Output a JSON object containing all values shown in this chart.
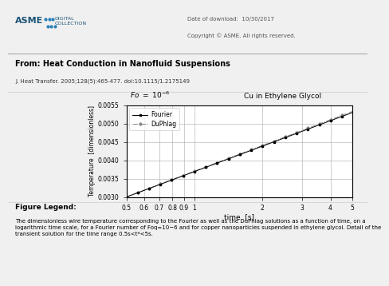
{
  "title_fo": "$Fo\\ =\\ 10^{-6}$",
  "title_right": "Cu in Ethylene Glycol",
  "xlabel": "time  [s]",
  "ylabel": "Temperature  [dimensionless]",
  "xlim": [
    0.5,
    5.0
  ],
  "ylim": [
    0.003,
    0.0055
  ],
  "yticks": [
    0.003,
    0.0035,
    0.004,
    0.0045,
    0.005,
    0.0055
  ],
  "legend_fourier": "Fourier",
  "legend_duphlag": "DuPhlag",
  "fourier_color": "#000000",
  "duphlag_color": "#888888",
  "bg_color": "#ffffff",
  "asme_title": "From: Heat Conduction in Nanofluid Suspensions",
  "journal_ref": "J. Heat Transfer. 2005;128(5):465-477. doi:10.1115/1.2175149",
  "fig_legend_title": "Figure Legend:",
  "fig_legend_text": "The dimensionless wire temperature corresponding to the Fourier as well as the DuPhlag solutions as a function of time, on a\nlogarithmic time scale, for a Fourier number of Foq=10−6 and for copper nanoparticles suspended in ethylene glycol. Detail of the\ntransient solution for the time range 0.5s<t*<5s.",
  "header_text1": "Date of download:  10/30/2017",
  "header_text2": "Copyright © ASME. All rights reserved.",
  "asme_logo_text": "ASME",
  "digital_text": "DIGITAL\nCOLLECTION",
  "T_at_05": 0.003,
  "T_at_5": 0.0053,
  "slope": 0.0023,
  "n_points": 200,
  "markevery": 10
}
